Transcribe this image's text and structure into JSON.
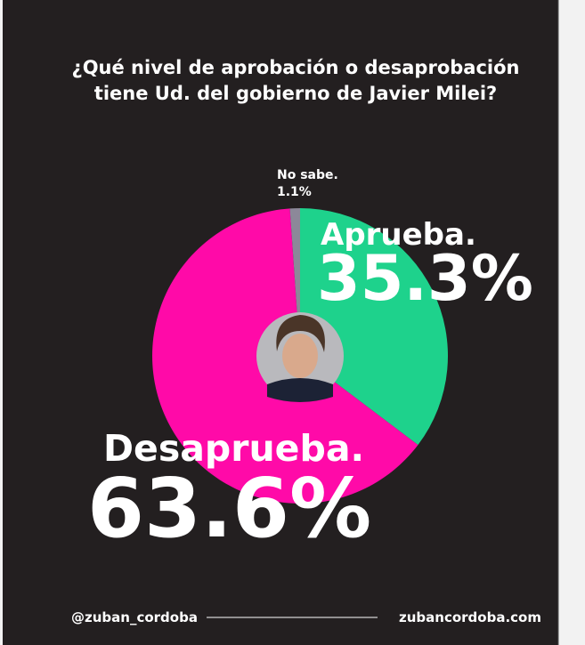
{
  "chart_data": {
    "type": "pie",
    "title": [
      "¿Qué nivel de aprobación o desaprobación",
      "tiene Ud. del gobierno de Javier Milei?"
    ],
    "categories": [
      "Aprueba.",
      "Desaprueba.",
      "No sabe."
    ],
    "values": [
      35.3,
      63.6,
      1.1
    ],
    "value_labels": [
      "35.3%",
      "63.6%",
      "1.1%"
    ],
    "colors": [
      "#1ed28c",
      "#ff0aa8",
      "#8c8899"
    ]
  },
  "footer": {
    "handle": "@zuban_cordoba",
    "website": "zubancordoba.com"
  }
}
